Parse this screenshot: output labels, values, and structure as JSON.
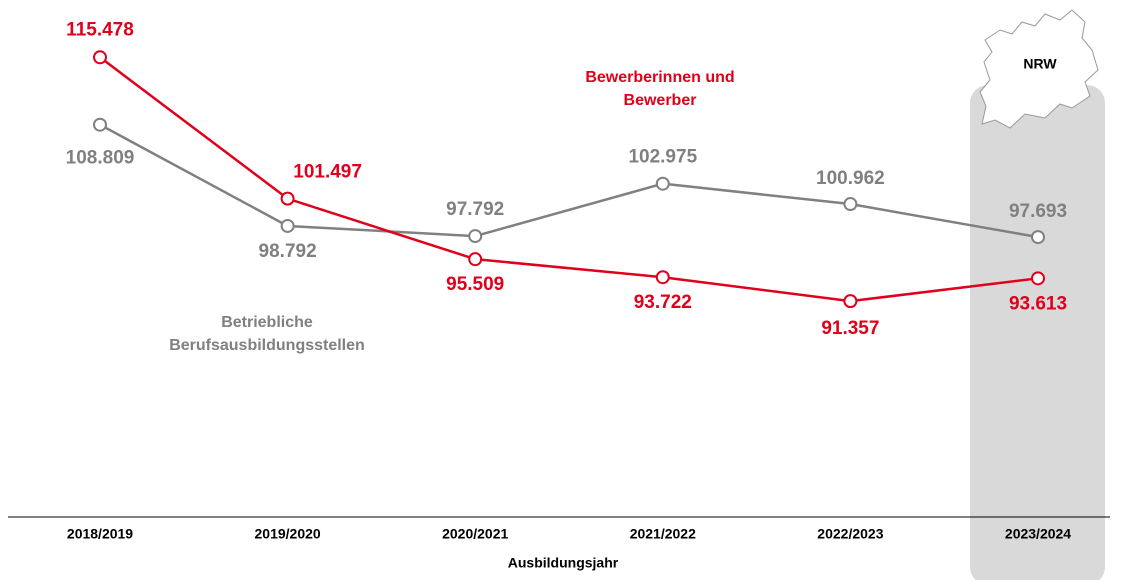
{
  "chart_data": {
    "type": "line",
    "categories": [
      "2018/2019",
      "2019/2020",
      "2020/2021",
      "2021/2022",
      "2022/2023",
      "2023/2024"
    ],
    "x_label": "Ausbildungsjahr",
    "annotation": "NRW",
    "ylim": [
      70000,
      120000
    ],
    "series": [
      {
        "name": "Bewerberinnen und Bewerber",
        "color": "#e0001b",
        "values": [
          115478,
          101497,
          95509,
          93722,
          91357,
          93613
        ],
        "value_labels": [
          "115.478",
          "101.497",
          "95.509",
          "93.722",
          "91.357",
          "93.613"
        ]
      },
      {
        "name": "Betriebliche Berufsausbildungsstellen",
        "color": "#808080",
        "values": [
          108809,
          98792,
          97792,
          102975,
          100962,
          97693
        ],
        "value_labels": [
          "108.809",
          "98.792",
          "97.792",
          "102.975",
          "100.962",
          "97.693"
        ]
      }
    ]
  }
}
